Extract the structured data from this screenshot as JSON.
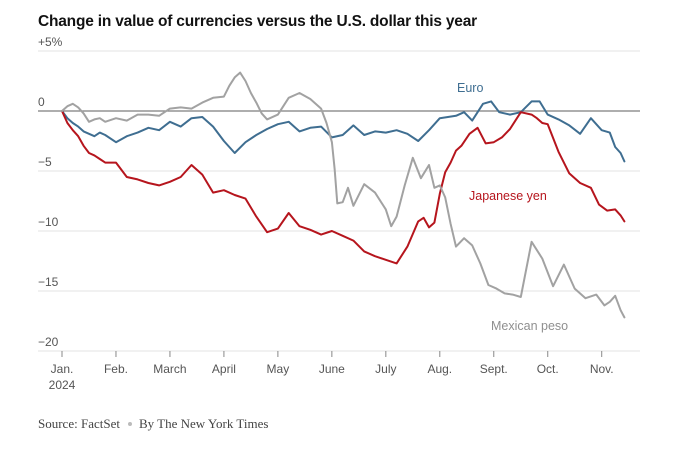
{
  "title": "Change in value of currencies versus the U.S. dollar this year",
  "footer": {
    "source": "Source: FactSet",
    "credit": "By The New York Times"
  },
  "colors": {
    "euro": "#3f6e91",
    "yen": "#b6151d",
    "peso": "#a2a2a2",
    "grid": "#e3e3e3",
    "zero": "#7d7d7d"
  },
  "chart_data": {
    "type": "line",
    "title": "Change in value of currencies versus the U.S. dollar this year",
    "xlabel": "",
    "ylabel": "",
    "ylim": [
      -20,
      5
    ],
    "yticks": [
      5,
      0,
      -5,
      -10,
      -15,
      -20
    ],
    "ytick_labels": [
      "+5%",
      "0",
      "−5",
      "−10",
      "−15",
      "−20"
    ],
    "xlim": [
      1,
      11.45
    ],
    "xticks": [
      1,
      2,
      3,
      4,
      5,
      6,
      7,
      8,
      9,
      10,
      11
    ],
    "xtick_labels": [
      "Jan.",
      "Feb.",
      "March",
      "April",
      "May",
      "June",
      "July",
      "Aug.",
      "Sept.",
      "Oct.",
      "Nov."
    ],
    "xtick_sublabel": "2024",
    "grid": true,
    "series": [
      {
        "name": "Euro",
        "color": "#3f6e91",
        "x": [
          1.0,
          1.1,
          1.2,
          1.3,
          1.4,
          1.5,
          1.6,
          1.7,
          1.8,
          2.0,
          2.2,
          2.4,
          2.6,
          2.8,
          3.0,
          3.2,
          3.4,
          3.6,
          3.8,
          4.0,
          4.2,
          4.4,
          4.6,
          4.8,
          5.0,
          5.2,
          5.4,
          5.6,
          5.8,
          6.0,
          6.2,
          6.4,
          6.6,
          6.8,
          7.0,
          7.2,
          7.4,
          7.6,
          7.8,
          8.0,
          8.15,
          8.3,
          8.45,
          8.6,
          8.8,
          8.95,
          9.1,
          9.3,
          9.5,
          9.7,
          9.85,
          10.0,
          10.2,
          10.4,
          10.6,
          10.8,
          11.0,
          11.15,
          11.25,
          11.35,
          11.42
        ],
        "y": [
          0.0,
          -0.6,
          -1.0,
          -1.3,
          -1.7,
          -1.9,
          -2.1,
          -1.8,
          -2.0,
          -2.6,
          -2.1,
          -1.8,
          -1.4,
          -1.6,
          -0.9,
          -1.3,
          -0.6,
          -0.5,
          -1.3,
          -2.5,
          -3.5,
          -2.6,
          -2.0,
          -1.5,
          -1.1,
          -0.9,
          -1.7,
          -1.4,
          -1.3,
          -2.2,
          -2.0,
          -1.2,
          -2.0,
          -1.7,
          -1.8,
          -1.6,
          -1.9,
          -2.5,
          -1.6,
          -0.6,
          -0.5,
          -0.4,
          -0.1,
          -0.8,
          0.6,
          0.8,
          -0.1,
          -0.3,
          -0.1,
          0.8,
          0.8,
          -0.3,
          -0.7,
          -1.2,
          -1.9,
          -0.6,
          -1.6,
          -1.8,
          -3.0,
          -3.5,
          -4.2
        ]
      },
      {
        "name": "Japanese yen",
        "color": "#b6151d",
        "x": [
          1.0,
          1.1,
          1.2,
          1.3,
          1.4,
          1.5,
          1.6,
          1.7,
          1.8,
          2.0,
          2.2,
          2.4,
          2.6,
          2.8,
          3.0,
          3.2,
          3.4,
          3.6,
          3.8,
          4.0,
          4.2,
          4.4,
          4.6,
          4.8,
          5.0,
          5.2,
          5.4,
          5.6,
          5.8,
          6.0,
          6.2,
          6.4,
          6.6,
          6.8,
          7.0,
          7.2,
          7.4,
          7.6,
          7.7,
          7.8,
          7.9,
          8.0,
          8.1,
          8.2,
          8.3,
          8.4,
          8.55,
          8.7,
          8.85,
          9.0,
          9.15,
          9.3,
          9.5,
          9.7,
          9.8,
          9.9,
          10.0,
          10.2,
          10.4,
          10.6,
          10.8,
          10.95,
          11.1,
          11.25,
          11.35,
          11.42
        ],
        "y": [
          0.0,
          -1.0,
          -1.6,
          -2.1,
          -2.9,
          -3.5,
          -3.7,
          -4.0,
          -4.3,
          -4.3,
          -5.5,
          -5.7,
          -6.0,
          -6.2,
          -5.9,
          -5.5,
          -4.5,
          -5.3,
          -6.8,
          -6.6,
          -7.0,
          -7.3,
          -8.8,
          -10.1,
          -9.8,
          -8.5,
          -9.6,
          -9.9,
          -10.3,
          -10.0,
          -10.4,
          -10.8,
          -11.7,
          -12.1,
          -12.4,
          -12.7,
          -11.3,
          -9.2,
          -8.9,
          -9.7,
          -9.3,
          -6.9,
          -5.1,
          -4.3,
          -3.3,
          -2.9,
          -1.9,
          -1.4,
          -2.7,
          -2.6,
          -2.2,
          -1.5,
          -0.1,
          -0.3,
          -0.6,
          -1.0,
          -1.1,
          -3.4,
          -5.2,
          -6.0,
          -6.4,
          -7.8,
          -8.3,
          -8.2,
          -8.7,
          -9.2
        ]
      },
      {
        "name": "Mexican peso",
        "color": "#a2a2a2",
        "x": [
          1.0,
          1.1,
          1.2,
          1.3,
          1.4,
          1.5,
          1.6,
          1.7,
          1.8,
          2.0,
          2.2,
          2.4,
          2.6,
          2.8,
          3.0,
          3.2,
          3.4,
          3.6,
          3.8,
          4.0,
          4.1,
          4.2,
          4.3,
          4.4,
          4.5,
          4.6,
          4.7,
          4.8,
          5.0,
          5.2,
          5.4,
          5.6,
          5.8,
          5.9,
          6.0,
          6.05,
          6.1,
          6.2,
          6.3,
          6.4,
          6.6,
          6.8,
          7.0,
          7.1,
          7.2,
          7.35,
          7.5,
          7.65,
          7.8,
          7.9,
          8.0,
          8.1,
          8.2,
          8.3,
          8.45,
          8.6,
          8.75,
          8.9,
          9.05,
          9.2,
          9.35,
          9.5,
          9.7,
          9.9,
          10.1,
          10.3,
          10.5,
          10.7,
          10.9,
          11.05,
          11.15,
          11.25,
          11.35,
          11.42
        ],
        "y": [
          0.0,
          0.4,
          0.6,
          0.3,
          -0.2,
          -0.9,
          -0.7,
          -0.6,
          -0.9,
          -0.6,
          -0.8,
          -0.3,
          -0.3,
          -0.4,
          0.2,
          0.3,
          0.2,
          0.7,
          1.1,
          1.2,
          2.1,
          2.8,
          3.2,
          2.5,
          1.5,
          0.7,
          -0.2,
          -0.7,
          -0.3,
          1.1,
          1.5,
          1.0,
          0.2,
          -1.0,
          -2.6,
          -4.8,
          -7.7,
          -7.6,
          -6.4,
          -7.9,
          -6.1,
          -6.8,
          -8.2,
          -9.6,
          -8.8,
          -6.2,
          -3.9,
          -5.6,
          -4.5,
          -6.4,
          -6.2,
          -7.2,
          -9.4,
          -11.3,
          -10.6,
          -11.2,
          -12.7,
          -14.5,
          -14.8,
          -15.2,
          -15.3,
          -15.5,
          -10.9,
          -12.3,
          -14.6,
          -12.8,
          -14.8,
          -15.6,
          -15.3,
          -16.2,
          -15.9,
          -15.4,
          -16.6,
          -17.2
        ]
      }
    ],
    "annotations": [
      {
        "text": "Euro",
        "series": "Euro"
      },
      {
        "text": "Japanese yen",
        "series": "Japanese yen"
      },
      {
        "text": "Mexican peso",
        "series": "Mexican peso"
      }
    ]
  }
}
